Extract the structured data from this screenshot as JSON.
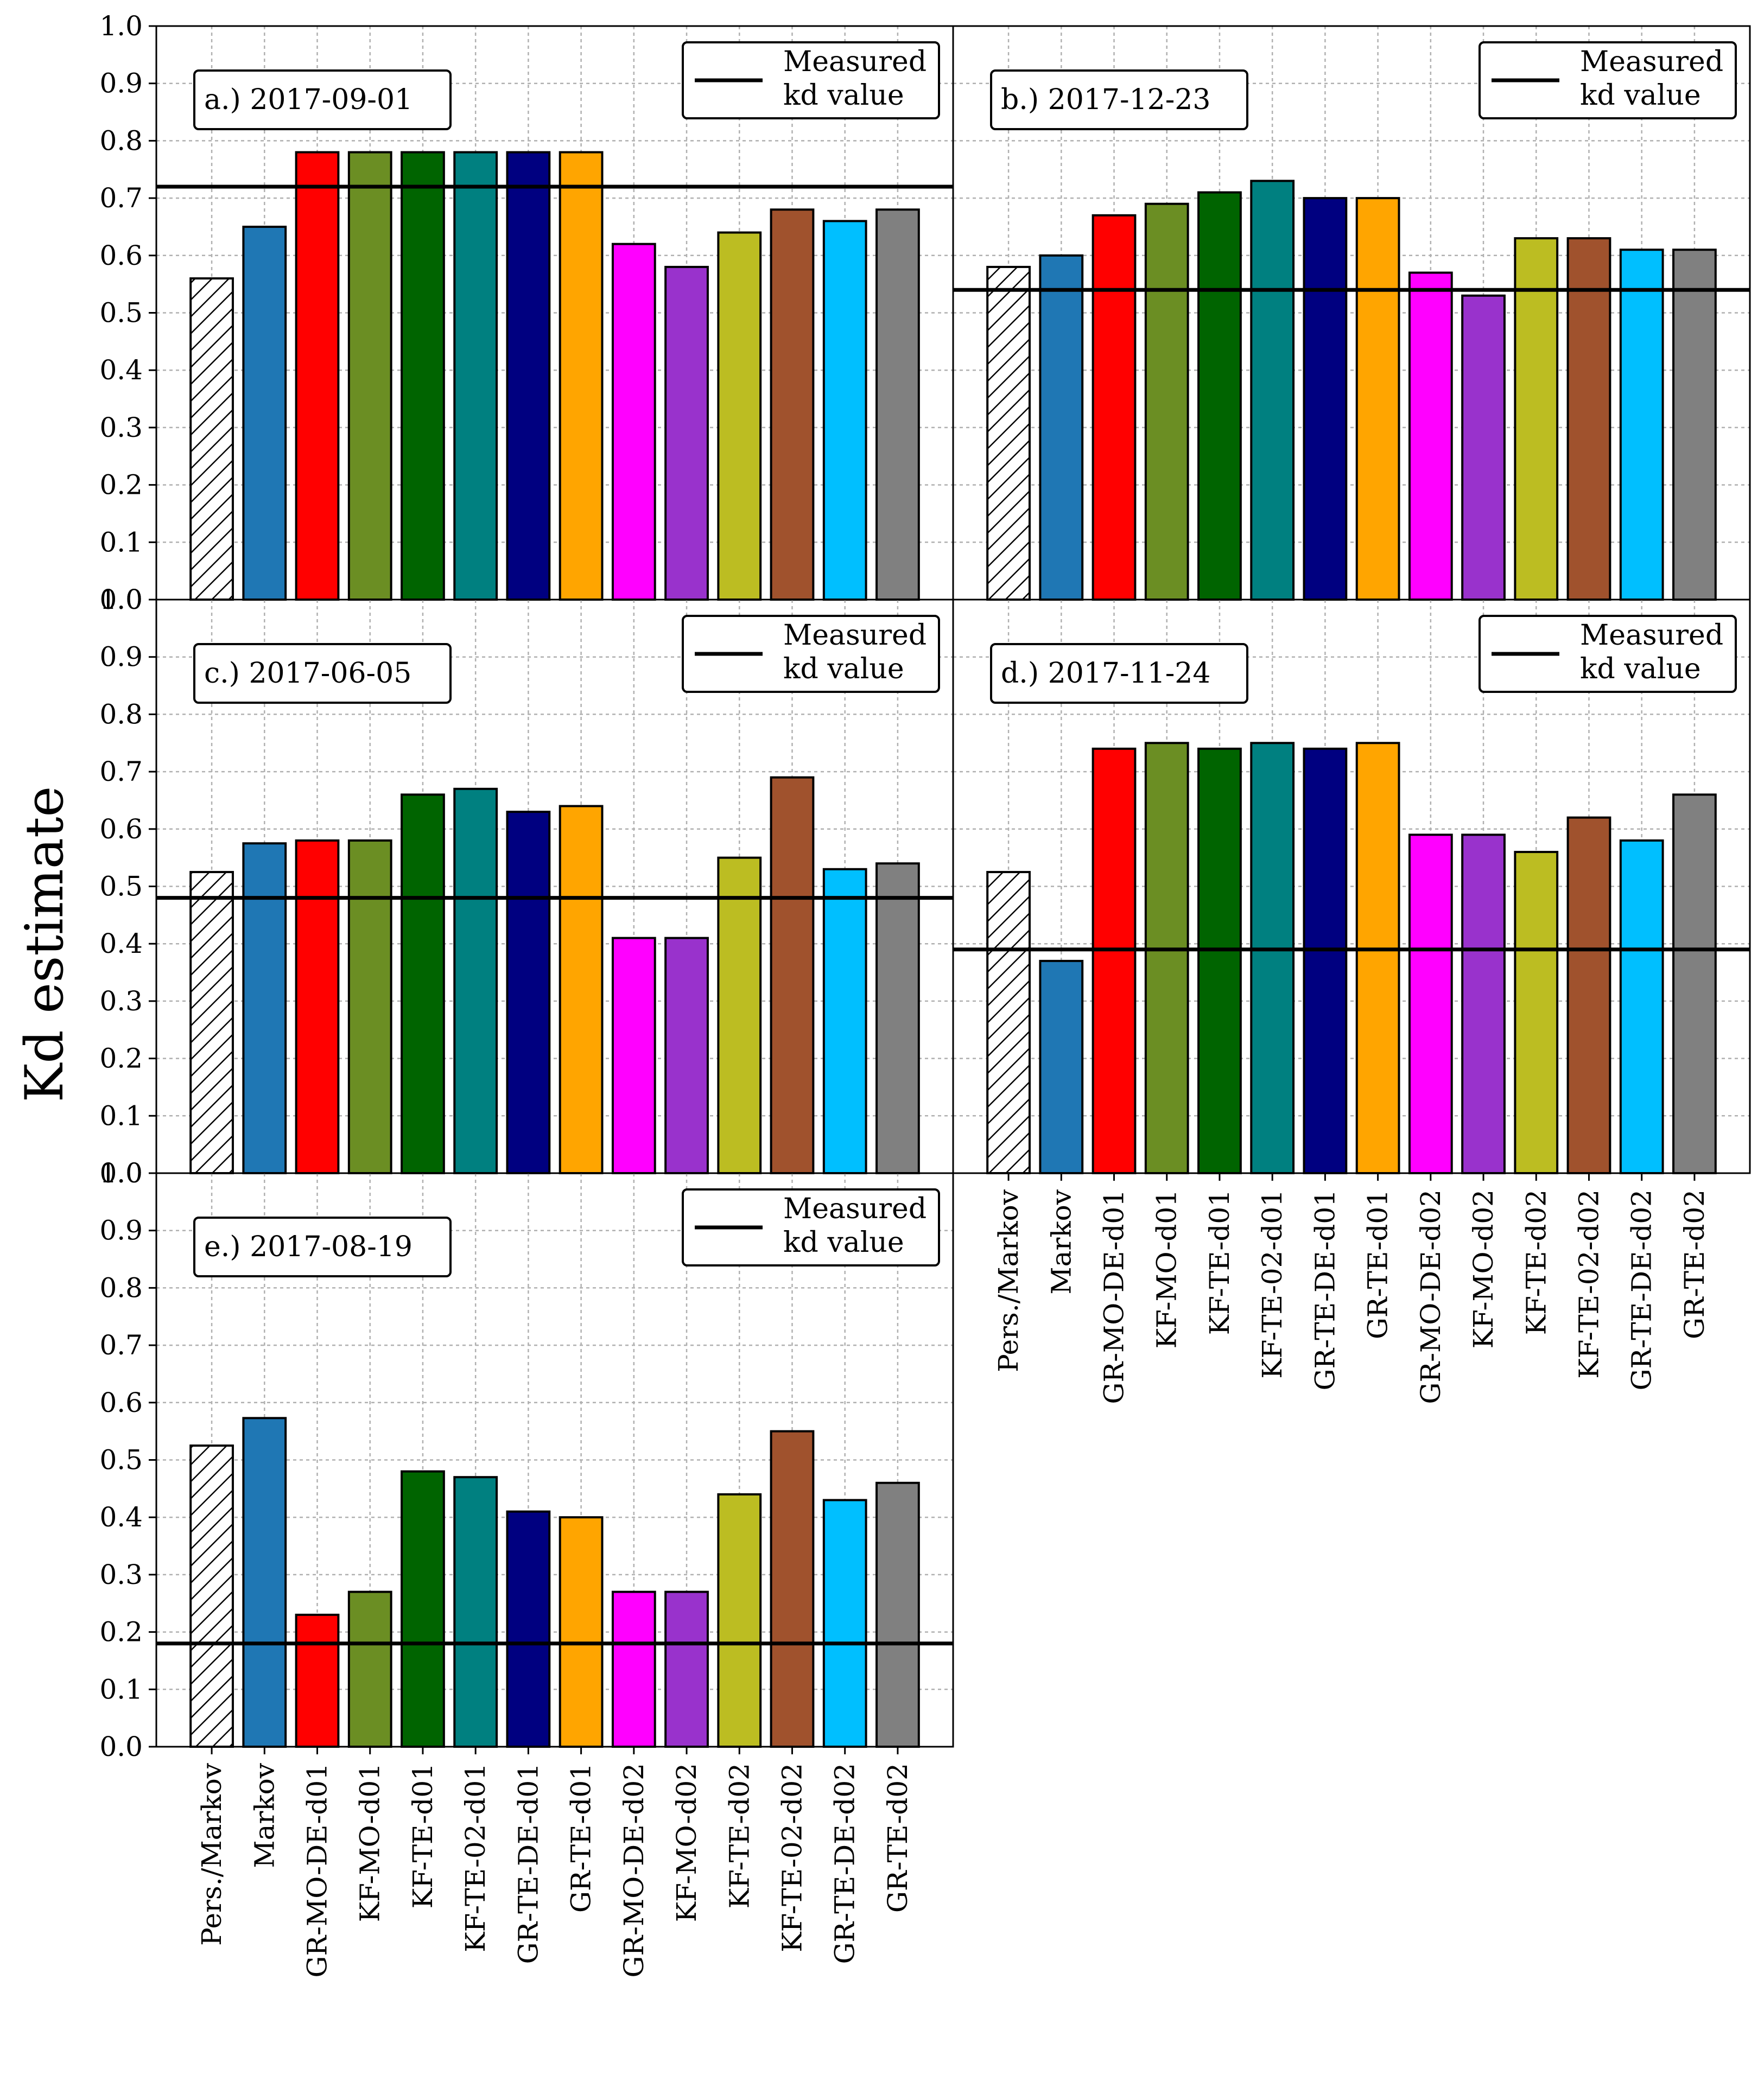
{
  "figure": {
    "ylabel": "Kd estimate"
  },
  "chart_data": [
    {
      "type": "bar",
      "panel": "a",
      "title": "a.) 2017-09-01",
      "categories": [
        "Pers./Markov",
        "Markov",
        "GR-MO-DE-d01",
        "KF-MO-d01",
        "KF-TE-d01",
        "KF-TE-02-d01",
        "GR-TE-DE-d01",
        "GR-TE-d01",
        "GR-MO-DE-d02",
        "KF-MO-d02",
        "KF-TE-d02",
        "KF-TE-02-d02",
        "GR-TE-DE-d02",
        "GR-TE-d02"
      ],
      "values": [
        0.56,
        0.65,
        0.78,
        0.78,
        0.78,
        0.78,
        0.78,
        0.78,
        0.62,
        0.58,
        0.64,
        0.68,
        0.66,
        0.68
      ],
      "measured": 0.72,
      "ylim": [
        0,
        1.0
      ],
      "legend": "Measured kd value",
      "legend_lines": [
        "Measured",
        "kd value"
      ],
      "show_yticks": true,
      "show_xticks": false
    },
    {
      "type": "bar",
      "panel": "b",
      "title": "b.) 2017-12-23",
      "categories": [
        "Pers./Markov",
        "Markov",
        "GR-MO-DE-d01",
        "KF-MO-d01",
        "KF-TE-d01",
        "KF-TE-02-d01",
        "GR-TE-DE-d01",
        "GR-TE-d01",
        "GR-MO-DE-d02",
        "KF-MO-d02",
        "KF-TE-d02",
        "KF-TE-02-d02",
        "GR-TE-DE-d02",
        "GR-TE-d02"
      ],
      "values": [
        0.58,
        0.6,
        0.67,
        0.69,
        0.71,
        0.73,
        0.7,
        0.7,
        0.57,
        0.53,
        0.63,
        0.63,
        0.61,
        0.61
      ],
      "measured": 0.54,
      "ylim": [
        0,
        1.0
      ],
      "legend": "Measured kd value",
      "legend_lines": [
        "Measured",
        "kd value"
      ],
      "show_yticks": false,
      "show_xticks": false
    },
    {
      "type": "bar",
      "panel": "c",
      "title": "c.) 2017-06-05",
      "categories": [
        "Pers./Markov",
        "Markov",
        "GR-MO-DE-d01",
        "KF-MO-d01",
        "KF-TE-d01",
        "KF-TE-02-d01",
        "GR-TE-DE-d01",
        "GR-TE-d01",
        "GR-MO-DE-d02",
        "KF-MO-d02",
        "KF-TE-d02",
        "KF-TE-02-d02",
        "GR-TE-DE-d02",
        "GR-TE-d02"
      ],
      "values": [
        0.525,
        0.575,
        0.58,
        0.58,
        0.66,
        0.67,
        0.63,
        0.64,
        0.41,
        0.41,
        0.55,
        0.69,
        0.53,
        0.54
      ],
      "measured": 0.48,
      "ylim": [
        0,
        1.0
      ],
      "legend": "Measured kd value",
      "legend_lines": [
        "Measured",
        "kd value"
      ],
      "show_yticks": true,
      "show_xticks": false
    },
    {
      "type": "bar",
      "panel": "d",
      "title": "d.) 2017-11-24",
      "categories": [
        "Pers./Markov",
        "Markov",
        "GR-MO-DE-d01",
        "KF-MO-d01",
        "KF-TE-d01",
        "KF-TE-02-d01",
        "GR-TE-DE-d01",
        "GR-TE-d01",
        "GR-MO-DE-d02",
        "KF-MO-d02",
        "KF-TE-d02",
        "KF-TE-02-d02",
        "GR-TE-DE-d02",
        "GR-TE-d02"
      ],
      "values": [
        0.525,
        0.37,
        0.74,
        0.75,
        0.74,
        0.75,
        0.74,
        0.75,
        0.59,
        0.59,
        0.56,
        0.62,
        0.58,
        0.66
      ],
      "measured": 0.39,
      "ylim": [
        0,
        1.0
      ],
      "legend": "Measured kd value",
      "legend_lines": [
        "Measured",
        "kd value"
      ],
      "show_yticks": false,
      "show_xticks": true
    },
    {
      "type": "bar",
      "panel": "e",
      "title": "e.) 2017-08-19",
      "categories": [
        "Pers./Markov",
        "Markov",
        "GR-MO-DE-d01",
        "KF-MO-d01",
        "KF-TE-d01",
        "KF-TE-02-d01",
        "GR-TE-DE-d01",
        "GR-TE-d01",
        "GR-MO-DE-d02",
        "KF-MO-d02",
        "KF-TE-d02",
        "KF-TE-02-d02",
        "GR-TE-DE-d02",
        "GR-TE-d02"
      ],
      "values": [
        0.525,
        0.573,
        0.23,
        0.27,
        0.48,
        0.47,
        0.41,
        0.4,
        0.27,
        0.27,
        0.44,
        0.55,
        0.43,
        0.46
      ],
      "measured": 0.18,
      "ylim": [
        0,
        1.0
      ],
      "legend": "Measured kd value",
      "legend_lines": [
        "Measured",
        "kd value"
      ],
      "show_yticks": true,
      "show_xticks": true
    }
  ],
  "bar_colors": [
    "#ffffff",
    "#1f77b4",
    "#ff0000",
    "#6b8e23",
    "#006400",
    "#008080",
    "#000080",
    "#ffa500",
    "#ff00ff",
    "#9932cc",
    "#bcbd22",
    "#a0522d",
    "#00bfff",
    "#808080"
  ],
  "hatch_first_bar": true,
  "y_tick_labels": [
    "0.0",
    "0.1",
    "0.2",
    "0.3",
    "0.4",
    "0.5",
    "0.6",
    "0.7",
    "0.8",
    "0.9",
    "1.0"
  ]
}
